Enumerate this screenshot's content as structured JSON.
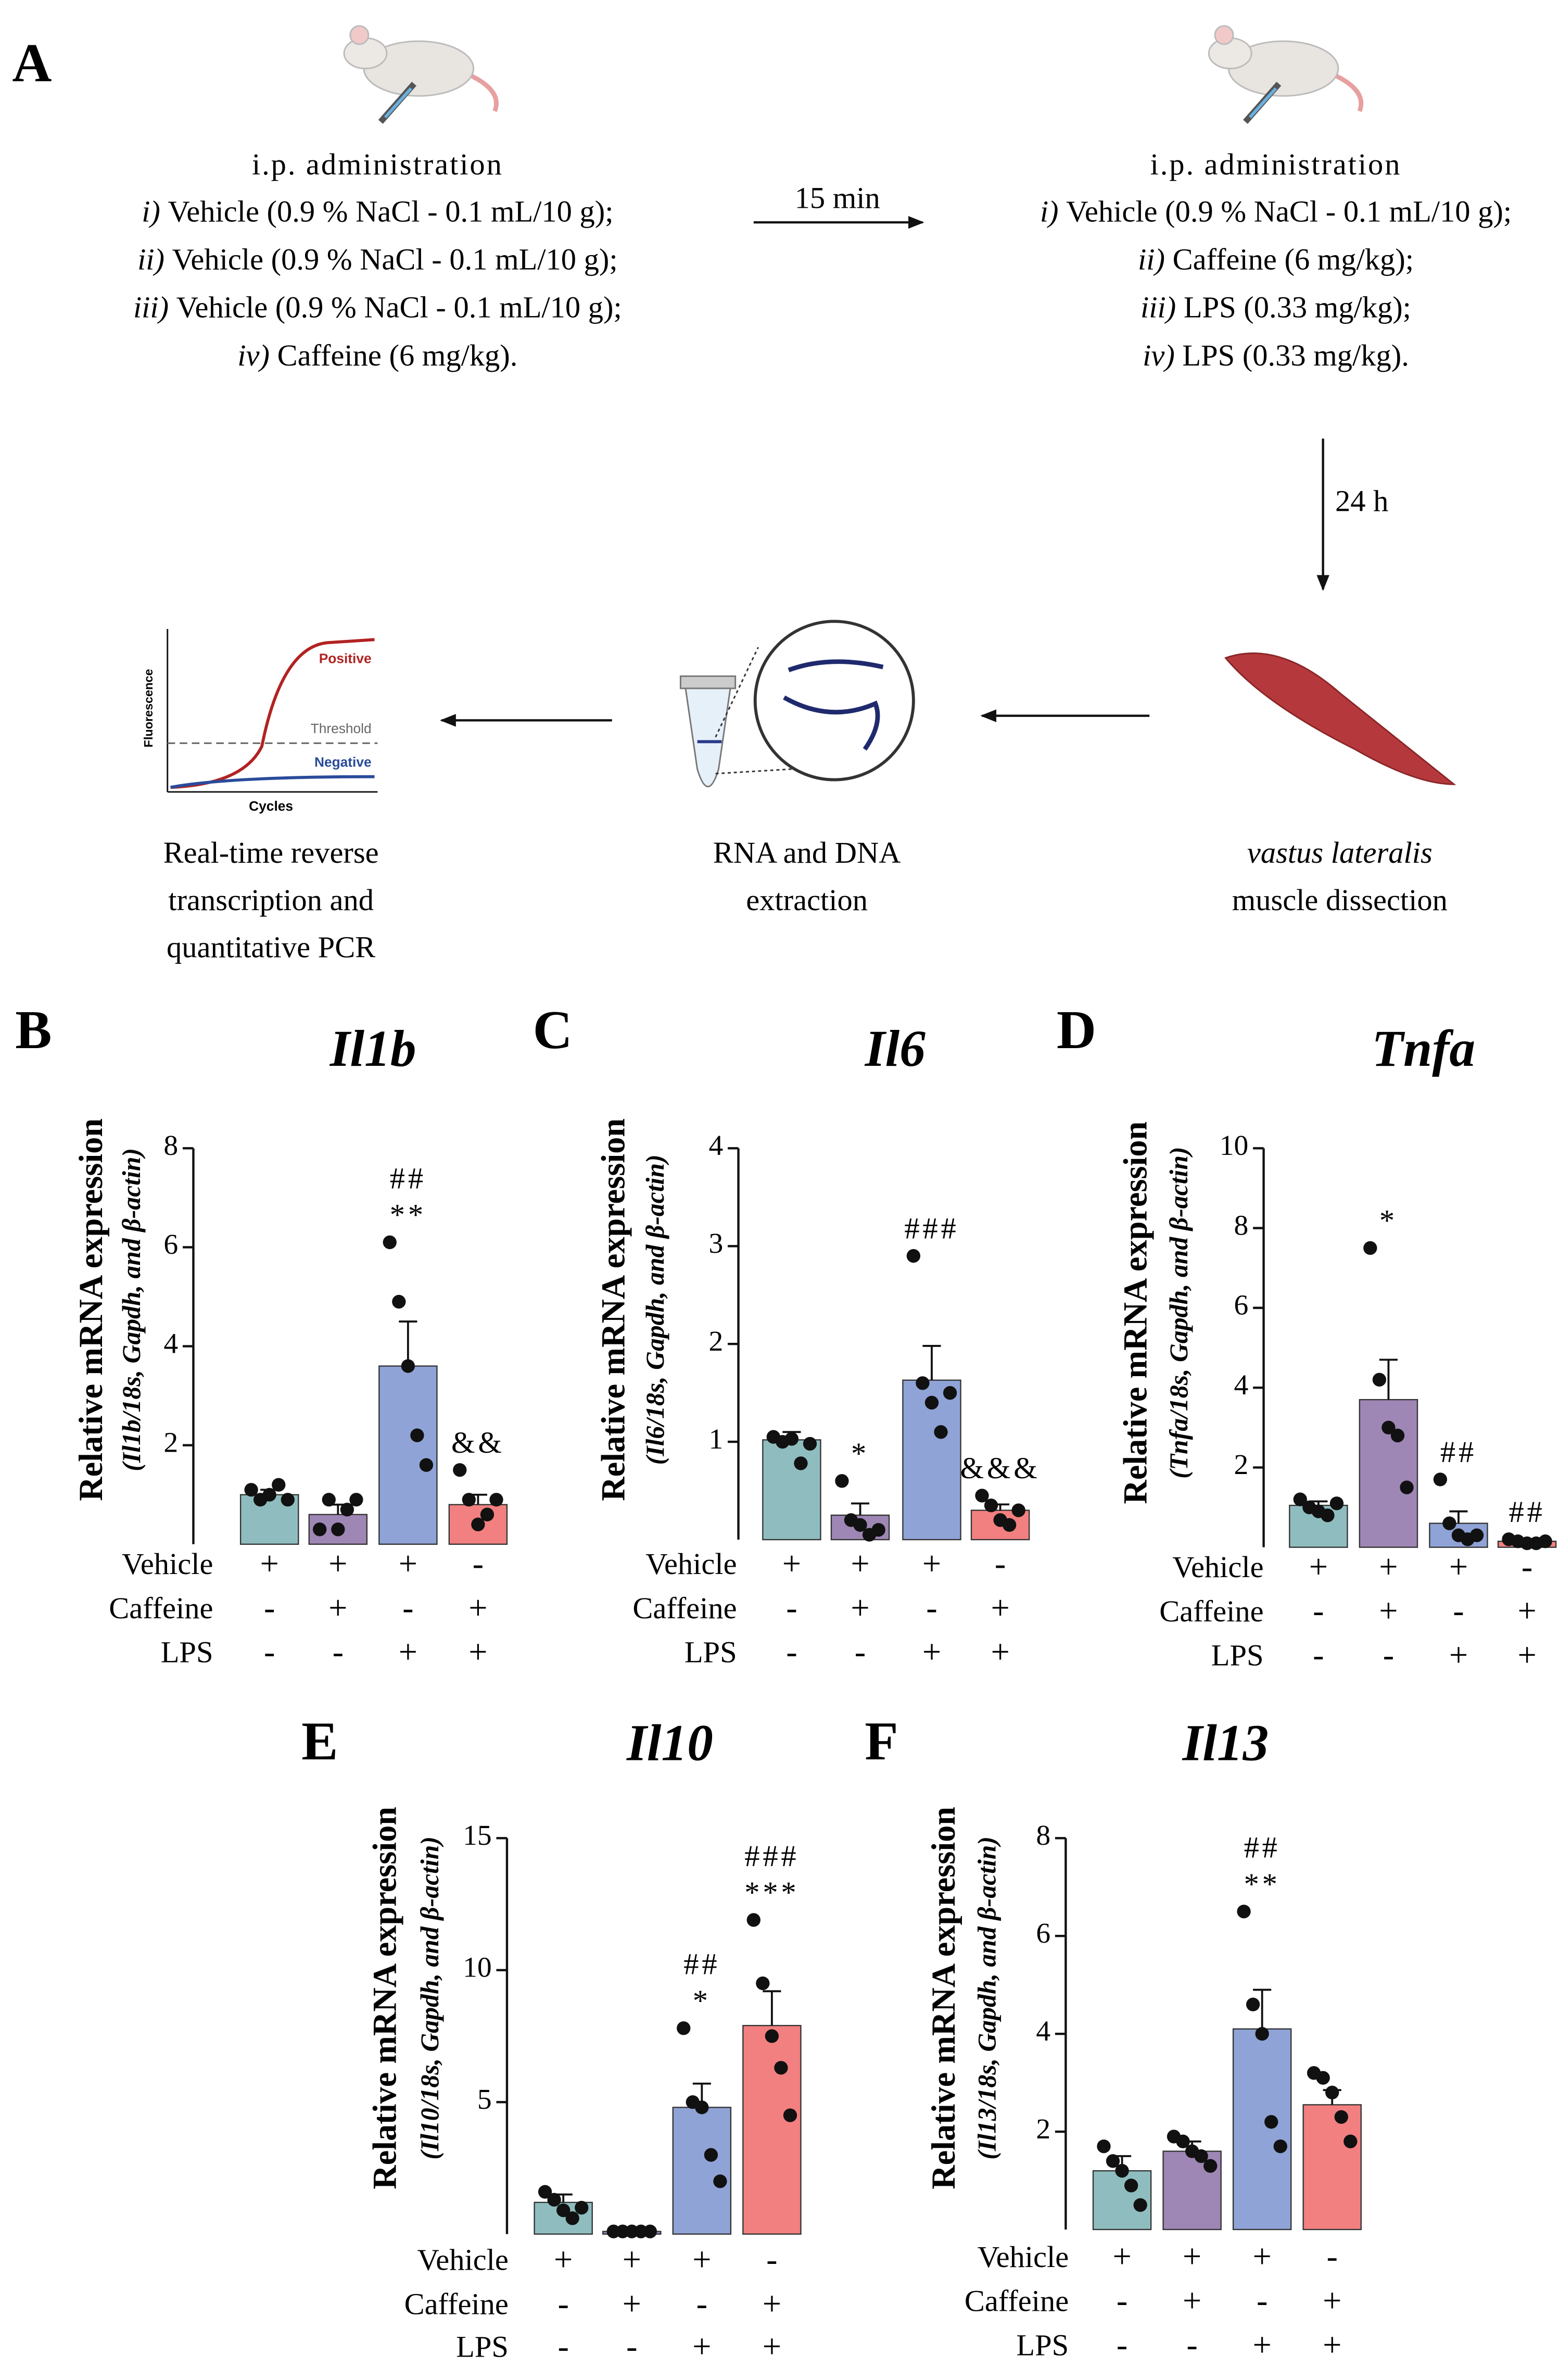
{
  "panel_a": {
    "letter": "A",
    "left": {
      "heading": "i.p. administration",
      "items": [
        {
          "numeral": "i)",
          "text": "Vehicle (0.9 % NaCl - 0.1 mL/10 g);"
        },
        {
          "numeral": "ii)",
          "text": "Vehicle (0.9 % NaCl - 0.1 mL/10 g);"
        },
        {
          "numeral": "iii)",
          "text": "Vehicle (0.9 % NaCl - 0.1 mL/10 g);"
        },
        {
          "numeral": "iv)",
          "text": "Caffeine (6 mg/kg)."
        }
      ]
    },
    "right": {
      "heading": "i.p. administration",
      "items": [
        {
          "numeral": "i)",
          "text": "Vehicle (0.9 % NaCl - 0.1 mL/10 g);"
        },
        {
          "numeral": "ii)",
          "text": "Caffeine (6 mg/kg);"
        },
        {
          "numeral": "iii)",
          "text": "LPS (0.33 mg/kg);"
        },
        {
          "numeral": "iv)",
          "text": "LPS (0.33 mg/kg)."
        }
      ]
    },
    "interval1": "15 min",
    "interval2": "24 h",
    "steps": [
      {
        "lines": [
          "Real-time reverse",
          "transcription and",
          "quantitative PCR"
        ]
      },
      {
        "lines": [
          "RNA and DNA",
          "extraction"
        ]
      },
      {
        "lines": [
          "vastus lateralis",
          "muscle dissection"
        ]
      }
    ],
    "pcr": {
      "ylabel": "Fluorescence",
      "xlabel": "Cycles",
      "positive": "Positive",
      "threshold": "Threshold",
      "negative": "Negative"
    }
  },
  "chart_data": [
    {
      "type": "bar",
      "panel": "B",
      "title": "Il1b",
      "ylabel": [
        "Relative mRNA expression",
        "(Il1b/18s, Gapdh, and β-actin)"
      ],
      "ylim": [
        0,
        8
      ],
      "yticks": [
        2,
        4,
        6,
        8
      ],
      "colors": [
        "#8fbdbf",
        "#9e86b5",
        "#8fa3d6",
        "#f28080"
      ],
      "values": [
        1.0,
        0.6,
        3.6,
        0.8
      ],
      "errors": [
        0.1,
        0.2,
        0.9,
        0.2
      ],
      "points": [
        [
          1.1,
          0.9,
          1.0,
          1.2,
          0.9
        ],
        [
          0.3,
          0.9,
          0.3,
          0.7,
          0.9
        ],
        [
          6.1,
          4.9,
          3.6,
          2.2,
          1.6
        ],
        [
          1.5,
          0.9,
          0.4,
          0.6,
          0.9
        ]
      ],
      "annotations": [
        [],
        [],
        [
          "##",
          "**"
        ],
        [
          "&&"
        ]
      ],
      "treatments": [
        {
          "name": "Vehicle",
          "marks": [
            "+",
            "+",
            "+",
            "-"
          ]
        },
        {
          "name": "Caffeine",
          "marks": [
            "-",
            "+",
            "-",
            "+"
          ]
        },
        {
          "name": "LPS",
          "marks": [
            "-",
            "-",
            "+",
            "+"
          ]
        }
      ]
    },
    {
      "type": "bar",
      "panel": "C",
      "title": "Il6",
      "ylabel": [
        "Relative mRNA expression",
        "(Il6/18s, Gapdh, and β-actin)"
      ],
      "ylim": [
        0,
        4
      ],
      "yticks": [
        1,
        2,
        3,
        4
      ],
      "colors": [
        "#8fbdbf",
        "#9e86b5",
        "#8fa3d6",
        "#f28080"
      ],
      "values": [
        1.02,
        0.25,
        1.63,
        0.3
      ],
      "errors": [
        0.08,
        0.12,
        0.35,
        0.06
      ],
      "points": [
        [
          1.05,
          1.0,
          1.03,
          0.78,
          0.98
        ],
        [
          0.6,
          0.2,
          0.15,
          0.05,
          0.1
        ],
        [
          2.9,
          1.6,
          1.4,
          1.1,
          1.5
        ],
        [
          0.45,
          0.35,
          0.2,
          0.15,
          0.3
        ]
      ],
      "annotations": [
        [],
        [
          "*"
        ],
        [
          "###"
        ],
        [
          "&&&"
        ]
      ],
      "treatments": [
        {
          "name": "Vehicle",
          "marks": [
            "+",
            "+",
            "+",
            "-"
          ]
        },
        {
          "name": "Caffeine",
          "marks": [
            "-",
            "+",
            "-",
            "+"
          ]
        },
        {
          "name": "LPS",
          "marks": [
            "-",
            "-",
            "+",
            "+"
          ]
        }
      ]
    },
    {
      "type": "bar",
      "panel": "D",
      "title": "Tnfa",
      "ylabel": [
        "Relative mRNA expression",
        "(Tnfa/18s, Gapdh, and β-actin)"
      ],
      "ylim": [
        0,
        10
      ],
      "yticks": [
        2,
        4,
        6,
        8,
        10
      ],
      "colors": [
        "#8fbdbf",
        "#9e86b5",
        "#8fa3d6",
        "#f28080"
      ],
      "values": [
        1.05,
        3.7,
        0.6,
        0.15
      ],
      "errors": [
        0.1,
        1.0,
        0.3,
        0.03
      ],
      "points": [
        [
          1.2,
          1.0,
          0.9,
          0.8,
          1.1
        ],
        [
          7.5,
          4.2,
          3.0,
          2.8,
          1.5
        ],
        [
          1.7,
          0.6,
          0.3,
          0.2,
          0.3
        ],
        [
          0.2,
          0.15,
          0.1,
          0.1,
          0.15
        ]
      ],
      "annotations": [
        [],
        [
          "*"
        ],
        [
          "##"
        ],
        [
          "##"
        ]
      ],
      "treatments": [
        {
          "name": "Vehicle",
          "marks": [
            "+",
            "+",
            "+",
            "-"
          ]
        },
        {
          "name": "Caffeine",
          "marks": [
            "-",
            "+",
            "-",
            "+"
          ]
        },
        {
          "name": "LPS",
          "marks": [
            "-",
            "-",
            "+",
            "+"
          ]
        }
      ]
    },
    {
      "type": "bar",
      "panel": "E",
      "title": "Il10",
      "ylabel": [
        "Relative mRNA expression",
        "(Il10/18s, Gapdh, and β-actin)"
      ],
      "ylim": [
        0,
        15
      ],
      "yticks": [
        5,
        10,
        15
      ],
      "colors": [
        "#8fbdbf",
        "#9e86b5",
        "#8fa3d6",
        "#f28080"
      ],
      "values": [
        1.2,
        0.1,
        4.8,
        7.9
      ],
      "errors": [
        0.3,
        0.03,
        0.9,
        1.3
      ],
      "points": [
        [
          1.6,
          1.3,
          0.9,
          0.6,
          1.0
        ],
        [
          0.1,
          0.1,
          0.1,
          0.1,
          0.1
        ],
        [
          7.8,
          5.0,
          4.8,
          3.0,
          2.0
        ],
        [
          11.9,
          9.5,
          7.5,
          6.3,
          4.5
        ]
      ],
      "annotations": [
        [],
        [],
        [
          "##",
          "*"
        ],
        [
          "###",
          "***"
        ]
      ],
      "treatments": [
        {
          "name": "Vehicle",
          "marks": [
            "+",
            "+",
            "+",
            "-"
          ]
        },
        {
          "name": "Caffeine",
          "marks": [
            "-",
            "+",
            "-",
            "+"
          ]
        },
        {
          "name": "LPS",
          "marks": [
            "-",
            "-",
            "+",
            "+"
          ]
        }
      ]
    },
    {
      "type": "bar",
      "panel": "F",
      "title": "Il13",
      "ylabel": [
        "Relative mRNA expression",
        "(Il13/18s, Gapdh, and β-actin)"
      ],
      "ylim": [
        0,
        8
      ],
      "yticks": [
        2,
        4,
        6,
        8
      ],
      "colors": [
        "#8fbdbf",
        "#9e86b5",
        "#8fa3d6",
        "#f28080"
      ],
      "values": [
        1.2,
        1.6,
        4.1,
        2.55
      ],
      "errors": [
        0.3,
        0.2,
        0.8,
        0.3
      ],
      "points": [
        [
          1.7,
          1.4,
          1.2,
          0.9,
          0.5
        ],
        [
          1.9,
          1.8,
          1.6,
          1.5,
          1.3
        ],
        [
          6.5,
          4.6,
          4.0,
          2.2,
          1.7
        ],
        [
          3.2,
          3.1,
          2.8,
          2.3,
          1.8
        ]
      ],
      "annotations": [
        [],
        [],
        [
          "##",
          "**"
        ],
        []
      ],
      "treatments": [
        {
          "name": "Vehicle",
          "marks": [
            "+",
            "+",
            "+",
            "-"
          ]
        },
        {
          "name": "Caffeine",
          "marks": [
            "-",
            "+",
            "-",
            "+"
          ]
        },
        {
          "name": "LPS",
          "marks": [
            "-",
            "-",
            "+",
            "+"
          ]
        }
      ]
    }
  ]
}
